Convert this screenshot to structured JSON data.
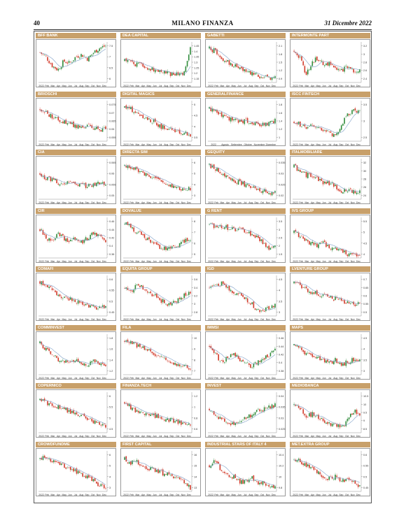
{
  "header": {
    "page_number": "40",
    "masthead": "MILANO FINANZA",
    "date": "31 Dicembre 2022"
  },
  "colors": {
    "title_bar": "#c8a06a",
    "up_candle": "#2e8b3a",
    "down_candle": "#d23a2a",
    "moving_average": "#7fa0c8"
  },
  "chart_data": [
    {
      "type": "candlestick",
      "title": "BFF BANK",
      "x_ticks": [
        "2022",
        "Feb",
        "Mar",
        "Apr",
        "May",
        "Jun",
        "Jul",
        "Aug",
        "Sep",
        "Oct",
        "Nov",
        "Dec"
      ],
      "y_ticks": [
        "7.5",
        "7",
        "6.5",
        "6"
      ],
      "values": [
        7.2,
        7.0,
        6.6,
        6.4,
        6.8,
        6.7,
        7.0,
        7.1,
        6.9,
        7.2,
        7.4,
        7.5
      ]
    },
    {
      "type": "candlestick",
      "title": "DEA CAPITAL",
      "x_ticks": [
        "2022",
        "Feb",
        "Mar",
        "Apr",
        "May",
        "Jun",
        "Jul",
        "Aug",
        "Sep",
        "Oct",
        "Nov",
        "Dec"
      ],
      "y_ticks": [
        "1.45",
        "1.4",
        "1.35",
        "1.3",
        "1.25",
        "1.2",
        "1.15"
      ],
      "values": [
        1.32,
        1.3,
        1.28,
        1.27,
        1.25,
        1.23,
        1.22,
        1.2,
        1.18,
        1.19,
        1.21,
        1.45
      ]
    },
    {
      "type": "candlestick",
      "title": "GABETTI",
      "x_ticks": [
        "2022",
        "Feb",
        "Mar",
        "Apr",
        "May",
        "Jun",
        "Jul",
        "Aug",
        "Sep",
        "Oct",
        "Nov",
        "Dec"
      ],
      "y_ticks": [
        "2.1",
        "1.8",
        "1.5",
        "1.2",
        "0.9"
      ],
      "values": [
        2.0,
        1.9,
        1.6,
        1.5,
        1.4,
        1.3,
        1.2,
        1.1,
        1.0,
        0.95,
        0.9,
        0.9
      ]
    },
    {
      "type": "candlestick",
      "title": "INTERMONTE PART",
      "x_ticks": [
        "2022",
        "Feb",
        "Mar",
        "Apr",
        "May",
        "Jun",
        "Jul",
        "Aug",
        "Sep",
        "Oct",
        "Nov",
        "Dec"
      ],
      "y_ticks": [
        "3.2",
        "3",
        "2.8",
        "2.6",
        "2.4"
      ],
      "values": [
        3.1,
        2.9,
        2.5,
        2.8,
        2.9,
        2.7,
        2.8,
        2.6,
        2.6,
        2.7,
        2.6,
        2.6
      ]
    },
    {
      "type": "candlestick",
      "title": "BRIOSCHI",
      "x_ticks": [
        "2022",
        "Feb",
        "Mar",
        "Apr",
        "May",
        "Jun",
        "Jul",
        "Aug",
        "Sep",
        "Oct",
        "Nov",
        "Dec"
      ],
      "y_ticks": [
        "0.075",
        "0.07",
        "0.065",
        "0.06",
        "0.055"
      ],
      "values": [
        0.072,
        0.07,
        0.068,
        0.066,
        0.064,
        0.063,
        0.062,
        0.061,
        0.062,
        0.061,
        0.06,
        0.06
      ]
    },
    {
      "type": "candlestick",
      "title": "DIGITAL MAGICS",
      "x_ticks": [
        "2022",
        "Feb",
        "Mar",
        "Apr",
        "May",
        "Jun",
        "Jul",
        "Aug",
        "Sep",
        "Oct",
        "Nov",
        "Dec"
      ],
      "y_ticks": [
        "5",
        "4.5",
        "4",
        "3.5"
      ],
      "values": [
        4.9,
        4.8,
        4.6,
        4.5,
        4.3,
        4.2,
        4.0,
        3.9,
        3.8,
        3.7,
        3.7,
        3.6
      ]
    },
    {
      "type": "candlestick",
      "title": "GENERALFINANCE",
      "x_ticks": [
        "2022",
        "Agosto",
        "Settembre",
        "Ottobre",
        "Novembre",
        "Dicembre"
      ],
      "y_ticks": [
        "1.8",
        "1.6",
        "1.4",
        "1.2",
        "1"
      ],
      "values": [
        1.7,
        1.5,
        1.4,
        1.4,
        1.3,
        1.4
      ]
    },
    {
      "type": "candlestick",
      "title": "ISCC FINTECH",
      "x_ticks": [
        "2022",
        "Feb",
        "Mar",
        "Apr",
        "May",
        "Jun",
        "Jul",
        "Aug",
        "Sep",
        "Oct",
        "Nov",
        "Dec"
      ],
      "y_ticks": [
        "3.5",
        "3",
        "2.5"
      ],
      "values": [
        3.0,
        2.9,
        2.8,
        2.9,
        2.8,
        2.7,
        2.6,
        2.5,
        2.9,
        3.2,
        3.3,
        3.3
      ]
    },
    {
      "type": "candlestick",
      "title": "CIA",
      "x_ticks": [
        "2022",
        "Feb",
        "Mar",
        "Apr",
        "May",
        "Jun",
        "Jul",
        "Aug",
        "Sep",
        "Oct",
        "Nov",
        "Dec"
      ],
      "y_ticks": [
        "0.065",
        "0.06",
        "0.055",
        "0.05"
      ],
      "values": [
        0.06,
        0.058,
        0.057,
        0.056,
        0.055,
        0.056,
        0.054,
        0.055,
        0.054,
        0.055,
        0.056,
        0.055
      ]
    },
    {
      "type": "candlestick",
      "title": "DIRECTA SIM",
      "x_ticks": [
        "2022",
        "Feb",
        "Mar",
        "Apr",
        "May",
        "Jun",
        "Jul",
        "Aug",
        "Sep",
        "Oct",
        "Nov",
        "Dec"
      ],
      "y_ticks": [
        "6",
        "5",
        "4",
        "3"
      ],
      "values": [
        5.8,
        5.6,
        5.4,
        5.0,
        4.8,
        4.5,
        4.2,
        4.0,
        3.8,
        3.7,
        3.6,
        3.6
      ]
    },
    {
      "type": "candlestick",
      "title": "GEQUITY",
      "x_ticks": [
        "2022",
        "Feb",
        "Mar",
        "Apr",
        "May",
        "Jun",
        "Jul",
        "Aug",
        "Sep",
        "Oct",
        "Nov",
        "Dec"
      ],
      "y_ticks": [
        "0.035",
        "0.03",
        "0.025",
        "0.02"
      ],
      "values": [
        0.034,
        0.032,
        0.03,
        0.029,
        0.027,
        0.026,
        0.025,
        0.024,
        0.023,
        0.022,
        0.021,
        0.021
      ]
    },
    {
      "type": "candlestick",
      "title": "ITALMOBILIARE",
      "x_ticks": [
        "2022",
        "Feb",
        "Mar",
        "Apr",
        "May",
        "Jun",
        "Jul",
        "Aug",
        "Sep",
        "Oct",
        "Nov",
        "Dec"
      ],
      "y_ticks": [
        "32",
        "30",
        "28",
        "26",
        "24"
      ],
      "values": [
        31,
        30,
        29,
        29,
        28,
        27,
        27,
        26,
        25,
        25,
        25,
        25
      ]
    },
    {
      "type": "candlestick",
      "title": "CIR",
      "x_ticks": [
        "2022",
        "Feb",
        "Mar",
        "Apr",
        "May",
        "Jun",
        "Jul",
        "Aug",
        "Sep",
        "Oct",
        "Nov",
        "Dec"
      ],
      "y_ticks": [
        "0.46",
        "0.44",
        "0.42",
        "0.4",
        "0.38"
      ],
      "values": [
        0.44,
        0.42,
        0.41,
        0.43,
        0.42,
        0.41,
        0.42,
        0.41,
        0.42,
        0.43,
        0.42,
        0.41
      ]
    },
    {
      "type": "candlestick",
      "title": "DOVALUE",
      "x_ticks": [
        "2022",
        "Feb",
        "Mar",
        "Apr",
        "May",
        "Jun",
        "Jul",
        "Aug",
        "Sep",
        "Oct",
        "Nov",
        "Dec"
      ],
      "y_ticks": [
        "8",
        "7",
        "6",
        "5"
      ],
      "values": [
        7.8,
        7.5,
        7.0,
        6.8,
        6.2,
        5.9,
        5.6,
        5.4,
        5.5,
        5.8,
        6.2,
        6.4
      ]
    },
    {
      "type": "candlestick",
      "title": "G RENT",
      "x_ticks": [
        "2022",
        "Feb",
        "Mar",
        "Apr",
        "May",
        "Jun",
        "Jul",
        "Aug",
        "Sep",
        "Oct",
        "Nov",
        "Dec"
      ],
      "y_ticks": [
        "3.5",
        "3",
        "2.5",
        "2",
        "1.5"
      ],
      "values": [
        3.3,
        3.2,
        3.2,
        3.1,
        3.0,
        3.0,
        2.9,
        2.7,
        2.5,
        2.2,
        1.8,
        1.9
      ]
    },
    {
      "type": "candlestick",
      "title": "IVS GROUP",
      "x_ticks": [
        "2022",
        "Feb",
        "Mar",
        "Apr",
        "May",
        "Jun",
        "Jul",
        "Aug",
        "Sep",
        "Oct",
        "Nov",
        "Dec"
      ],
      "y_ticks": [
        "5.5",
        "5",
        "4.5",
        "4"
      ],
      "values": [
        5.0,
        4.8,
        4.6,
        4.5,
        4.4,
        4.5,
        4.3,
        4.2,
        4.1,
        4.0,
        4.0,
        3.9
      ]
    },
    {
      "type": "candlestick",
      "title": "COMAFI",
      "x_ticks": [
        "2022",
        "Feb",
        "Mar",
        "Apr",
        "May",
        "Jun",
        "Jul",
        "Aug",
        "Sep",
        "Oct",
        "Nov",
        "Dec"
      ],
      "y_ticks": [
        "0.6",
        "0.55",
        "0.5",
        "0.45"
      ],
      "values": [
        0.59,
        0.57,
        0.55,
        0.53,
        0.52,
        0.51,
        0.5,
        0.49,
        0.48,
        0.47,
        0.47,
        0.48
      ]
    },
    {
      "type": "candlestick",
      "title": "EQUITA GROUP",
      "x_ticks": [
        "2022",
        "Feb",
        "Mar",
        "Apr",
        "May",
        "Jun",
        "Jul",
        "Aug",
        "Sep",
        "Oct",
        "Nov",
        "Dec"
      ],
      "y_ticks": [
        "3.6",
        "3.4",
        "3.2",
        "3",
        "2.8"
      ],
      "values": [
        3.4,
        3.3,
        3.5,
        3.4,
        3.3,
        3.2,
        3.1,
        3.0,
        3.0,
        3.1,
        3.2,
        3.3
      ]
    },
    {
      "type": "candlestick",
      "title": "IGD",
      "x_ticks": [
        "2022",
        "Feb",
        "Mar",
        "Apr",
        "May",
        "Jun",
        "Jul",
        "Aug",
        "Sep",
        "Oct",
        "Nov",
        "Dec"
      ],
      "y_ticks": [
        "4.5",
        "4",
        "3.5",
        "3"
      ],
      "values": [
        4.1,
        4.2,
        4.3,
        4.1,
        3.9,
        3.8,
        3.6,
        3.4,
        3.1,
        3.0,
        3.2,
        3.3
      ]
    },
    {
      "type": "candlestick",
      "title": "LVENTURE GROUP",
      "x_ticks": [
        "2022",
        "Feb",
        "Mar",
        "Apr",
        "May",
        "Jun",
        "Jul",
        "Aug",
        "Sep",
        "Oct",
        "Nov",
        "Dec"
      ],
      "y_ticks": [
        "0.7",
        "0.65",
        "0.6",
        "0.55",
        "0.5"
      ],
      "values": [
        0.68,
        0.66,
        0.64,
        0.62,
        0.61,
        0.6,
        0.59,
        0.58,
        0.57,
        0.56,
        0.55,
        0.55
      ]
    },
    {
      "type": "candlestick",
      "title": "COMMINVEST",
      "x_ticks": [
        "2022",
        "Feb",
        "Mar",
        "Apr",
        "May",
        "Jun",
        "Jul",
        "Aug",
        "Sep",
        "Oct",
        "Nov",
        "Dec"
      ],
      "y_ticks": [
        "1.8",
        "1.6",
        "1.4",
        "1.2"
      ],
      "values": [
        1.7,
        1.6,
        1.5,
        1.4,
        1.4,
        1.3,
        1.4,
        1.3,
        1.3,
        1.4,
        1.3,
        1.3
      ]
    },
    {
      "type": "candlestick",
      "title": "FILA",
      "x_ticks": [
        "2022",
        "Feb",
        "Mar",
        "Apr",
        "May",
        "Jun",
        "Jul",
        "Aug",
        "Sep",
        "Oct",
        "Nov",
        "Dec"
      ],
      "y_ticks": [
        "10",
        "9",
        "8",
        "7"
      ],
      "values": [
        9.8,
        9.6,
        9.3,
        9.1,
        8.8,
        8.6,
        8.3,
        8.0,
        7.8,
        7.6,
        7.4,
        7.3
      ]
    },
    {
      "type": "candlestick",
      "title": "IMMSI",
      "x_ticks": [
        "2022",
        "Feb",
        "Mar",
        "Apr",
        "May",
        "Jun",
        "Jul",
        "Aug",
        "Sep",
        "Oct",
        "Nov",
        "Dec"
      ],
      "y_ticks": [
        "0.46",
        "0.44",
        "0.42",
        "0.4",
        "0.38"
      ],
      "values": [
        0.44,
        0.42,
        0.4,
        0.41,
        0.42,
        0.41,
        0.4,
        0.39,
        0.4,
        0.41,
        0.42,
        0.43
      ]
    },
    {
      "type": "candlestick",
      "title": "MAPS",
      "x_ticks": [
        "2022",
        "Feb",
        "Mar",
        "Apr",
        "May",
        "Jun",
        "Jul",
        "Aug",
        "Sep",
        "Oct",
        "Nov",
        "Dec"
      ],
      "y_ticks": [
        "4.5",
        "4",
        "3.5",
        "3"
      ],
      "values": [
        4.2,
        4.0,
        3.8,
        3.7,
        3.6,
        3.5,
        3.4,
        3.5,
        3.3,
        3.4,
        3.5,
        3.5
      ]
    },
    {
      "type": "candlestick",
      "title": "COPERNICO",
      "x_ticks": [
        "2022",
        "Feb",
        "Mar",
        "Apr",
        "May",
        "Jun",
        "Jul",
        "Aug",
        "Sep",
        "Oct",
        "Nov",
        "Dec"
      ],
      "y_ticks": [
        "6",
        "5.5",
        "5",
        "4.5"
      ],
      "values": [
        5.8,
        5.7,
        5.6,
        5.5,
        5.4,
        5.3,
        5.2,
        5.1,
        5.0,
        4.8,
        4.7,
        4.6
      ]
    },
    {
      "type": "candlestick",
      "title": "FINANZA.TECH",
      "x_ticks": [
        "2022",
        "Feb",
        "Mar",
        "Apr",
        "May",
        "Jun",
        "Jul",
        "Aug",
        "Sep",
        "Oct",
        "Nov",
        "Dec"
      ],
      "y_ticks": [
        "1.2",
        "1",
        "0.8",
        "0.6"
      ],
      "values": [
        1.1,
        1.0,
        0.9,
        0.88,
        0.85,
        0.84,
        0.8,
        0.78,
        0.75,
        0.72,
        0.7,
        0.7
      ]
    },
    {
      "type": "candlestick",
      "title": "INVEST",
      "x_ticks": [
        "2022",
        "Feb",
        "Mar",
        "Apr",
        "May",
        "Jun",
        "Jul",
        "Aug",
        "Sep",
        "Oct",
        "Nov",
        "Dec"
      ],
      "y_ticks": [
        "0.04",
        "0.035",
        "0.03",
        "0.025"
      ],
      "values": [
        0.034,
        0.032,
        0.029,
        0.028,
        0.027,
        0.029,
        0.03,
        0.031,
        0.033,
        0.034,
        0.035,
        0.036
      ]
    },
    {
      "type": "candlestick",
      "title": "MEDIOBANCA",
      "x_ticks": [
        "2022",
        "Feb",
        "Mar",
        "Apr",
        "May",
        "Jun",
        "Jul",
        "Aug",
        "Sep",
        "Oct",
        "Nov",
        "Dec"
      ],
      "y_ticks": [
        "10.5",
        "10",
        "9.5",
        "9",
        "8.5"
      ],
      "values": [
        10.0,
        9.8,
        9.2,
        9.4,
        9.2,
        9.0,
        8.8,
        8.7,
        8.6,
        9.0,
        9.6,
        9.3
      ]
    },
    {
      "type": "candlestick",
      "title": "CROWDFUNDME",
      "x_ticks": [
        "2022",
        "Feb",
        "Mar",
        "Apr",
        "May",
        "Jun",
        "Jul",
        "Aug",
        "Sep",
        "Oct",
        "Nov",
        "Dec"
      ],
      "y_ticks": [
        "6",
        "5",
        "4",
        "3"
      ],
      "values": [
        5.6,
        5.8,
        5.5,
        5.2,
        5.0,
        4.8,
        4.5,
        4.2,
        4.0,
        3.6,
        3.2,
        3.0
      ]
    },
    {
      "type": "candlestick",
      "title": "FIRST CAPITAL",
      "x_ticks": [
        "2022",
        "Feb",
        "Mar",
        "Apr",
        "May",
        "Jun",
        "Jul",
        "Aug",
        "Sep",
        "Oct",
        "Nov",
        "Dec"
      ],
      "y_ticks": [
        "16",
        "15",
        "14",
        "13"
      ],
      "values": [
        15.6,
        15.2,
        15.4,
        15.0,
        14.8,
        14.6,
        14.4,
        14.2,
        14.0,
        13.8,
        13.4,
        13.0
      ]
    },
    {
      "type": "candlestick",
      "title": "INDUSTRIAL STARS OF ITALY 4",
      "x_ticks": [
        "2022",
        "Feb",
        "Mar",
        "Apr",
        "May",
        "Jun",
        "Jul",
        "Aug",
        "Sep",
        "Oct",
        "Nov",
        "Dec"
      ],
      "y_ticks": [
        "10.4",
        "10.2",
        "10",
        "9.8"
      ],
      "values": [
        10.2,
        10.3,
        10.1,
        10.0,
        10.0,
        9.9,
        9.9,
        10.0,
        9.9,
        9.9,
        9.8,
        9.8
      ]
    },
    {
      "type": "candlestick",
      "title": "MET.EXTRA GROUP",
      "x_ticks": [
        "2022",
        "Feb",
        "Mar",
        "Apr",
        "May",
        "Jun",
        "Jul",
        "Aug",
        "Sep",
        "Oct",
        "Nov",
        "Dec"
      ],
      "y_ticks": [
        "0.6",
        "0.55",
        "0.5",
        "0.45"
      ],
      "values": [
        0.58,
        0.57,
        0.55,
        0.54,
        0.52,
        0.5,
        0.49,
        0.5,
        0.48,
        0.49,
        0.47,
        0.46
      ]
    }
  ]
}
